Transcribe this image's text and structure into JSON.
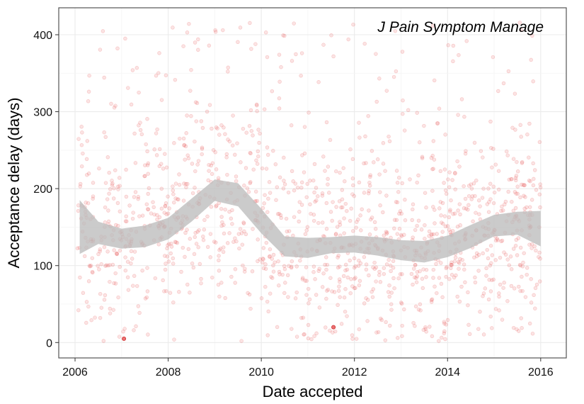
{
  "chart_data": {
    "type": "scatter",
    "title": "",
    "annotation": "J Pain Symptom Manage",
    "xlabel": "Date accepted",
    "ylabel": "Acceptance delay (days)",
    "xlim": [
      2005.65,
      2016.55
    ],
    "ylim": [
      -20,
      435
    ],
    "x_ticks": [
      2006,
      2008,
      2010,
      2012,
      2014,
      2016
    ],
    "x_tick_labels": [
      "2006",
      "2008",
      "2010",
      "2012",
      "2014",
      "2016"
    ],
    "y_ticks": [
      0,
      100,
      200,
      300,
      400
    ],
    "y_tick_labels": [
      "0",
      "100",
      "200",
      "300",
      "400"
    ],
    "grid": true,
    "point_color": "#e8585a",
    "ribbon_color": "#bdbdbd",
    "smooth": {
      "x": [
        2006.1,
        2006.5,
        2007.0,
        2007.5,
        2008.0,
        2008.5,
        2009.0,
        2009.5,
        2010.0,
        2010.5,
        2011.0,
        2011.5,
        2012.0,
        2012.5,
        2013.0,
        2013.5,
        2014.0,
        2014.5,
        2015.0,
        2015.5,
        2016.0
      ],
      "y": [
        150,
        142,
        135,
        138,
        148,
        172,
        198,
        192,
        158,
        125,
        123,
        126,
        128,
        125,
        120,
        118,
        125,
        138,
        152,
        155,
        148
      ],
      "lower": [
        115,
        128,
        122,
        124,
        134,
        157,
        184,
        177,
        142,
        112,
        110,
        116,
        117,
        113,
        107,
        104,
        111,
        123,
        138,
        140,
        125
      ],
      "upper": [
        185,
        157,
        148,
        152,
        162,
        187,
        212,
        207,
        174,
        138,
        136,
        137,
        139,
        137,
        133,
        132,
        139,
        153,
        166,
        170,
        171
      ]
    },
    "highlighted_points": [
      {
        "x": 2007.05,
        "y": 5
      },
      {
        "x": 2011.55,
        "y": 20
      }
    ],
    "point_seed": 20240607,
    "point_count": 1450
  }
}
